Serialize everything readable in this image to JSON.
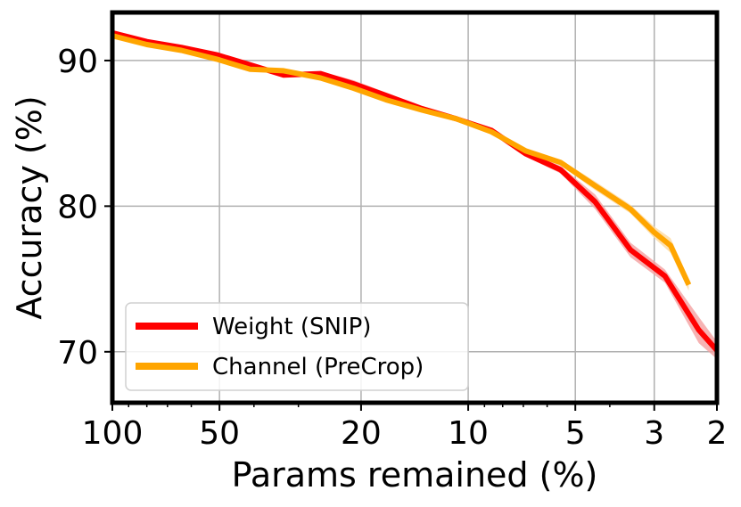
{
  "chart_data": {
    "type": "line",
    "title": "",
    "xlabel": "Params remained (%)",
    "ylabel": "Accuracy (%)",
    "x_scale": "log",
    "x_reversed": true,
    "xlim": [
      100,
      2
    ],
    "ylim": [
      66.5,
      93.3
    ],
    "grid": true,
    "legend_position": "lower-left",
    "x_ticks": [
      {
        "value": 100,
        "label": "100"
      },
      {
        "value": 50,
        "label": "50"
      },
      {
        "value": 20,
        "label": "20"
      },
      {
        "value": 10,
        "label": "10"
      },
      {
        "value": 5,
        "label": "5"
      },
      {
        "value": 3,
        "label": "3"
      },
      {
        "value": 2,
        "label": "2"
      }
    ],
    "y_ticks": [
      {
        "value": 70,
        "label": "70"
      },
      {
        "value": 80,
        "label": "80"
      },
      {
        "value": 90,
        "label": "90"
      }
    ],
    "series": [
      {
        "name": "Weight (SNIP)",
        "color": "#ff0000",
        "band_color": "#f4a0a0",
        "x": [
          100,
          80,
          64,
          51,
          41,
          33,
          26,
          21,
          17,
          13.5,
          10.8,
          8.6,
          6.9,
          5.5,
          4.4,
          3.5,
          2.8,
          2.25,
          2.0
        ],
        "y": [
          91.9,
          91.3,
          90.9,
          90.4,
          89.7,
          89.0,
          89.1,
          88.4,
          87.6,
          86.7,
          86.0,
          85.2,
          83.6,
          82.5,
          80.3,
          77.0,
          75.2,
          71.5,
          70.1
        ],
        "band": [
          0,
          0,
          0,
          0,
          0.1,
          0.15,
          0.15,
          0.25,
          0.2,
          0.15,
          0.1,
          0.15,
          0.2,
          0.25,
          0.5,
          0.5,
          0.45,
          0.9,
          0.6
        ]
      },
      {
        "name": "Channel (PreCrop)",
        "color": "#ffa500",
        "band_color": "#fcd9a0",
        "x": [
          100,
          80,
          64,
          51,
          41,
          33,
          26,
          21,
          17,
          13.5,
          10.8,
          8.6,
          6.9,
          5.5,
          4.4,
          3.5,
          3.0,
          2.7,
          2.4
        ],
        "y": [
          91.7,
          91.1,
          90.7,
          90.1,
          89.4,
          89.3,
          88.8,
          88.1,
          87.3,
          86.6,
          86.0,
          85.1,
          83.8,
          83.0,
          81.4,
          79.8,
          78.2,
          77.3,
          74.6
        ],
        "band": [
          0,
          0,
          0,
          0,
          0,
          0.1,
          0.1,
          0.1,
          0.1,
          0.1,
          0.1,
          0.15,
          0.2,
          0.2,
          0.3,
          0.3,
          0.4,
          0.5,
          0.4
        ]
      }
    ]
  }
}
